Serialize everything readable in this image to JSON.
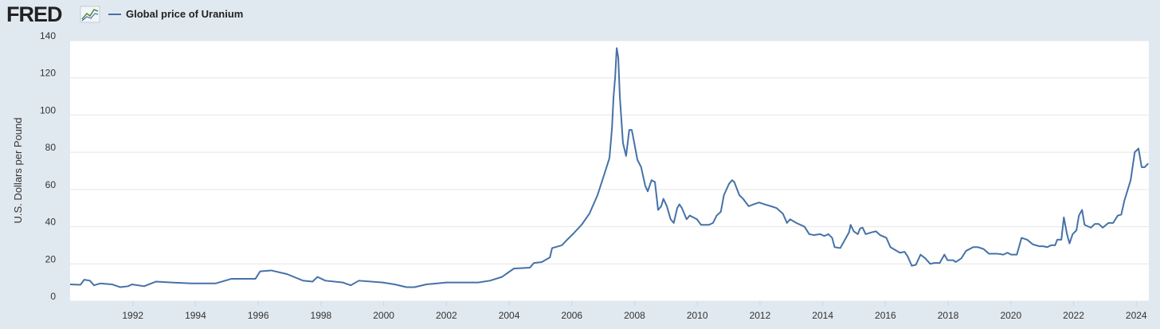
{
  "logo": "FRED",
  "chart_data": {
    "type": "line",
    "y_label": "U.S. Dollars per Pound",
    "x": [
      1990.0,
      1990.33,
      1990.45,
      1990.63,
      1990.76,
      1990.96,
      1991.34,
      1991.59,
      1991.85,
      1991.97,
      1992.36,
      1992.74,
      1993.24,
      1993.88,
      1994.64,
      1995.15,
      1995.91,
      1996.06,
      1996.41,
      1996.92,
      1997.43,
      1997.73,
      1997.89,
      1998.14,
      1998.7,
      1998.95,
      1999.21,
      1999.97,
      2000.35,
      2000.73,
      2000.98,
      2001.36,
      2002.0,
      2003.01,
      2003.39,
      2003.77,
      2004.15,
      2004.66,
      2004.79,
      2005.04,
      2005.3,
      2005.37,
      2005.68,
      2005.85,
      2006.06,
      2006.31,
      2006.56,
      2006.82,
      2007.07,
      2007.2,
      2007.28,
      2007.33,
      2007.38,
      2007.43,
      2007.48,
      2007.53,
      2007.63,
      2007.73,
      2007.83,
      2007.91,
      2007.98,
      2008.09,
      2008.21,
      2008.34,
      2008.42,
      2008.54,
      2008.65,
      2008.75,
      2008.85,
      2008.92,
      2009.03,
      2009.15,
      2009.25,
      2009.36,
      2009.43,
      2009.51,
      2009.66,
      2009.76,
      2009.99,
      2010.12,
      2010.37,
      2010.5,
      2010.62,
      2010.75,
      2010.85,
      2011.01,
      2011.11,
      2011.18,
      2011.34,
      2011.46,
      2011.64,
      2011.79,
      2011.97,
      2012.15,
      2012.35,
      2012.53,
      2012.73,
      2012.86,
      2012.96,
      2013.16,
      2013.42,
      2013.57,
      2013.72,
      2013.92,
      2014.05,
      2014.18,
      2014.3,
      2014.38,
      2014.56,
      2014.74,
      2014.84,
      2014.89,
      2014.99,
      2015.12,
      2015.19,
      2015.27,
      2015.37,
      2015.57,
      2015.7,
      2015.83,
      2016.03,
      2016.16,
      2016.26,
      2016.46,
      2016.61,
      2016.71,
      2016.84,
      2016.97,
      2017.12,
      2017.27,
      2017.43,
      2017.55,
      2017.73,
      2017.88,
      2017.98,
      2018.16,
      2018.24,
      2018.42,
      2018.57,
      2018.8,
      2018.95,
      2019.13,
      2019.3,
      2019.56,
      2019.76,
      2019.89,
      2020.01,
      2020.19,
      2020.34,
      2020.52,
      2020.7,
      2020.9,
      2021.03,
      2021.16,
      2021.28,
      2021.41,
      2021.48,
      2021.61,
      2021.69,
      2021.79,
      2021.87,
      2021.97,
      2022.09,
      2022.17,
      2022.27,
      2022.35,
      2022.55,
      2022.68,
      2022.8,
      2022.93,
      2023.11,
      2023.26,
      2023.41,
      2023.52,
      2023.62,
      2023.82,
      2023.95,
      2024.07,
      2024.17,
      2024.27,
      2024.38
    ],
    "series": [
      {
        "name": "Global price of Uranium",
        "color": "#4572a7",
        "values": [
          9,
          8.8,
          11.5,
          11,
          8.5,
          9.5,
          9,
          7.5,
          8,
          9,
          8,
          10.5,
          10,
          9.5,
          9.5,
          12,
          12,
          16,
          16.5,
          14.5,
          11,
          10.5,
          13,
          11,
          10,
          8.5,
          11,
          10,
          9,
          7.5,
          7.5,
          9,
          10,
          10,
          11,
          13,
          17.5,
          18,
          20.5,
          21,
          23.5,
          28.5,
          30,
          33,
          36.5,
          41,
          47,
          57,
          70,
          77,
          93,
          110,
          120,
          136,
          131,
          110,
          85,
          78,
          92,
          92,
          86,
          76,
          72,
          62,
          59,
          65,
          64,
          49,
          51,
          55,
          51,
          44,
          42,
          50,
          52,
          50,
          44,
          46,
          44,
          41,
          41,
          42,
          46,
          48,
          57,
          63,
          65,
          64,
          57,
          55,
          51,
          52,
          53,
          52,
          51,
          50,
          47,
          42,
          44,
          42,
          40,
          36,
          35.5,
          36,
          35,
          36,
          34,
          29,
          28.5,
          34,
          37,
          41,
          37.5,
          36,
          39,
          39.5,
          36,
          37,
          37.5,
          35.5,
          34,
          29,
          28,
          26,
          26.5,
          24,
          19,
          19.5,
          25,
          23,
          20,
          20.5,
          20.5,
          25,
          22,
          22,
          21,
          23,
          27,
          29,
          29,
          28,
          25.5,
          25.5,
          25,
          26,
          25,
          25,
          34,
          33,
          30.5,
          29.5,
          29.5,
          29,
          30,
          30,
          33,
          33,
          45,
          36,
          31,
          36,
          38,
          46,
          49,
          41,
          39.5,
          41.5,
          41.5,
          39.5,
          42,
          42,
          46,
          46.5,
          54,
          65,
          80,
          82,
          72,
          72,
          74
        ]
      }
    ],
    "xlim": [
      1990,
      2024.4
    ],
    "xticks": [
      1992,
      1994,
      1996,
      1998,
      2000,
      2002,
      2004,
      2006,
      2008,
      2010,
      2012,
      2014,
      2016,
      2018,
      2020,
      2022,
      2024
    ],
    "ylim": [
      0,
      140
    ],
    "yticks": [
      0,
      20,
      40,
      60,
      80,
      100,
      120,
      140
    ],
    "grid": true
  }
}
